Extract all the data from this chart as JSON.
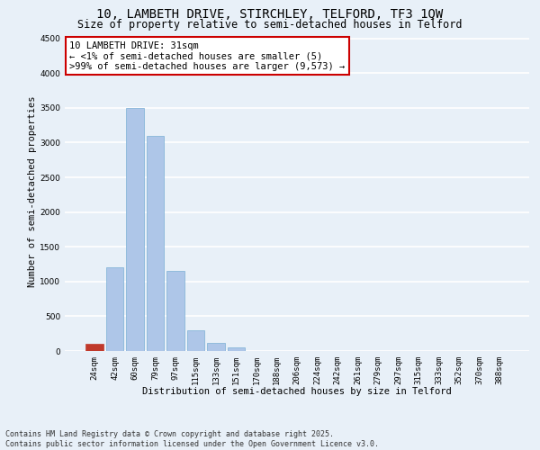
{
  "title_line1": "10, LAMBETH DRIVE, STIRCHLEY, TELFORD, TF3 1QW",
  "title_line2": "Size of property relative to semi-detached houses in Telford",
  "xlabel": "Distribution of semi-detached houses by size in Telford",
  "ylabel": "Number of semi-detached properties",
  "categories": [
    "24sqm",
    "42sqm",
    "60sqm",
    "79sqm",
    "97sqm",
    "115sqm",
    "133sqm",
    "151sqm",
    "170sqm",
    "188sqm",
    "206sqm",
    "224sqm",
    "242sqm",
    "261sqm",
    "279sqm",
    "297sqm",
    "315sqm",
    "333sqm",
    "352sqm",
    "370sqm",
    "388sqm"
  ],
  "values": [
    100,
    1200,
    3500,
    3100,
    1150,
    300,
    120,
    50,
    5,
    0,
    0,
    0,
    0,
    0,
    0,
    0,
    0,
    0,
    0,
    0,
    0
  ],
  "bar_color": "#aec6e8",
  "bar_edge_color": "#7aafd4",
  "highlight_bar_index": 0,
  "highlight_bar_color": "#c0392b",
  "highlight_bar_edge": "#c0392b",
  "annotation_text": "10 LAMBETH DRIVE: 31sqm\n← <1% of semi-detached houses are smaller (5)\n>99% of semi-detached houses are larger (9,573) →",
  "annotation_box_facecolor": "#ffffff",
  "annotation_box_edgecolor": "#cc0000",
  "ylim": [
    0,
    4600
  ],
  "yticks": [
    0,
    500,
    1000,
    1500,
    2000,
    2500,
    3000,
    3500,
    4000,
    4500
  ],
  "background_color": "#e8f0f8",
  "grid_color": "#ffffff",
  "footer": "Contains HM Land Registry data © Crown copyright and database right 2025.\nContains public sector information licensed under the Open Government Licence v3.0.",
  "title_fontsize": 10,
  "subtitle_fontsize": 8.5,
  "axis_label_fontsize": 7.5,
  "tick_fontsize": 6.5,
  "annotation_fontsize": 7.5,
  "footer_fontsize": 6.0
}
